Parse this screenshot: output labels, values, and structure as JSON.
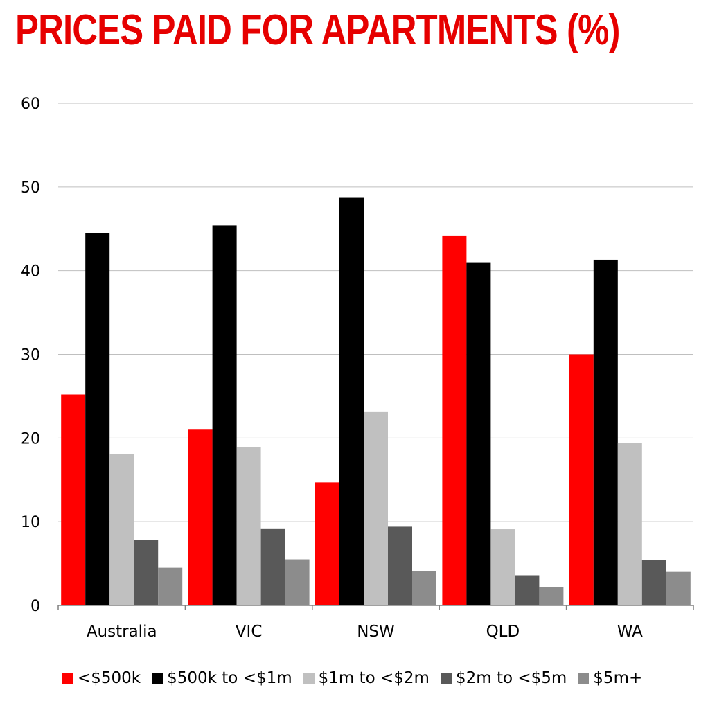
{
  "chart_data": {
    "type": "bar",
    "title": "PRICES PAID FOR APARTMENTS (%)",
    "categories": [
      "Australia",
      "VIC",
      "NSW",
      "QLD",
      "WA"
    ],
    "series": [
      {
        "name": "<$500k",
        "color": "#ff0000",
        "values": [
          25.2,
          21.0,
          14.7,
          44.2,
          30.0
        ]
      },
      {
        "name": "$500k to <$1m",
        "color": "#000000",
        "values": [
          44.5,
          45.4,
          48.7,
          41.0,
          41.3
        ]
      },
      {
        "name": "$1m to <$2m",
        "color": "#c0c0c0",
        "values": [
          18.1,
          18.9,
          23.1,
          9.1,
          19.4
        ]
      },
      {
        "name": "$2m to <$5m",
        "color": "#595959",
        "values": [
          7.8,
          9.2,
          9.4,
          3.6,
          5.4
        ]
      },
      {
        "name": "$5m+",
        "color": "#8c8c8c",
        "values": [
          4.5,
          5.5,
          4.1,
          2.2,
          4.0
        ]
      }
    ],
    "ylim": [
      0,
      60
    ],
    "yticks": [
      0,
      10,
      20,
      30,
      40,
      50,
      60
    ],
    "grid": true,
    "legend_position": "bottom"
  }
}
